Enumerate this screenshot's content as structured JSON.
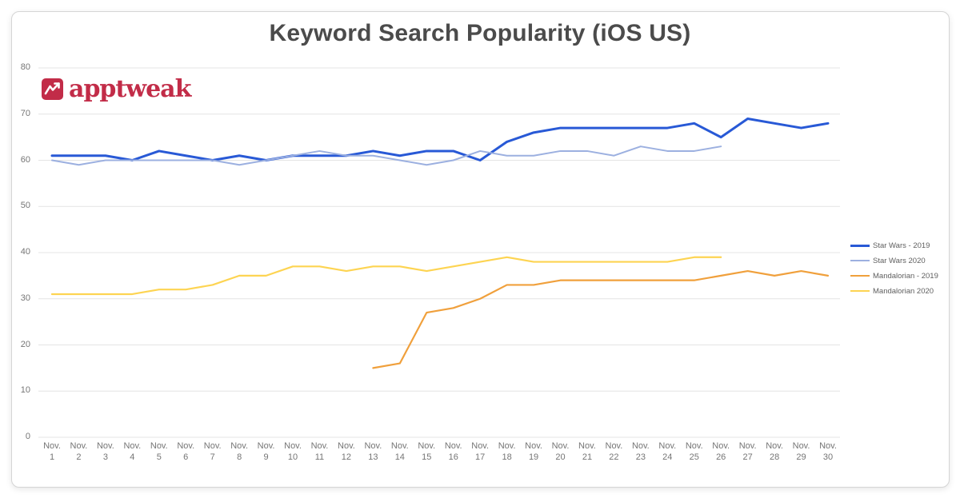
{
  "logo": {
    "text": "apptweak",
    "color": "#c22c48",
    "icon": "zigzag-chart-icon"
  },
  "chart_data": {
    "type": "line",
    "title": "Keyword Search Popularity (iOS US)",
    "xlabel": "",
    "ylabel": "",
    "ylim": [
      0,
      80
    ],
    "y_ticks": [
      0,
      10,
      20,
      30,
      40,
      50,
      60,
      70,
      80
    ],
    "grid": true,
    "legend_position": "right",
    "x_label_prefix": "Nov.",
    "x_days": [
      1,
      2,
      3,
      4,
      5,
      6,
      7,
      8,
      9,
      10,
      11,
      12,
      13,
      14,
      15,
      16,
      17,
      18,
      19,
      20,
      21,
      22,
      23,
      24,
      25,
      26,
      27,
      28,
      29,
      30
    ],
    "series": [
      {
        "name": "Star Wars - 2019",
        "color": "#2859d6",
        "start_day": 1,
        "values": [
          61,
          61,
          61,
          60,
          62,
          61,
          60,
          61,
          60,
          61,
          61,
          61,
          62,
          61,
          62,
          62,
          60,
          64,
          66,
          67,
          67,
          67,
          67,
          67,
          68,
          65,
          69,
          68,
          67,
          68
        ]
      },
      {
        "name": "Star Wars 2020",
        "color": "#9cb0e0",
        "start_day": 1,
        "values": [
          60,
          59,
          60,
          60,
          60,
          60,
          60,
          59,
          60,
          61,
          62,
          61,
          61,
          60,
          59,
          60,
          62,
          61,
          61,
          62,
          62,
          61,
          63,
          62,
          62,
          63
        ]
      },
      {
        "name": "Mandalorian - 2019",
        "color": "#f0a03c",
        "start_day": 13,
        "values": [
          15,
          16,
          27,
          28,
          30,
          33,
          33,
          34,
          34,
          34,
          34,
          34,
          34,
          35,
          36,
          35,
          36,
          35
        ]
      },
      {
        "name": "Mandalorian 2020",
        "color": "#fdd452",
        "start_day": 1,
        "values": [
          31,
          31,
          31,
          31,
          32,
          32,
          33,
          35,
          35,
          37,
          37,
          36,
          37,
          37,
          36,
          37,
          38,
          39,
          38,
          38,
          38,
          38,
          38,
          38,
          39,
          39
        ]
      }
    ]
  }
}
